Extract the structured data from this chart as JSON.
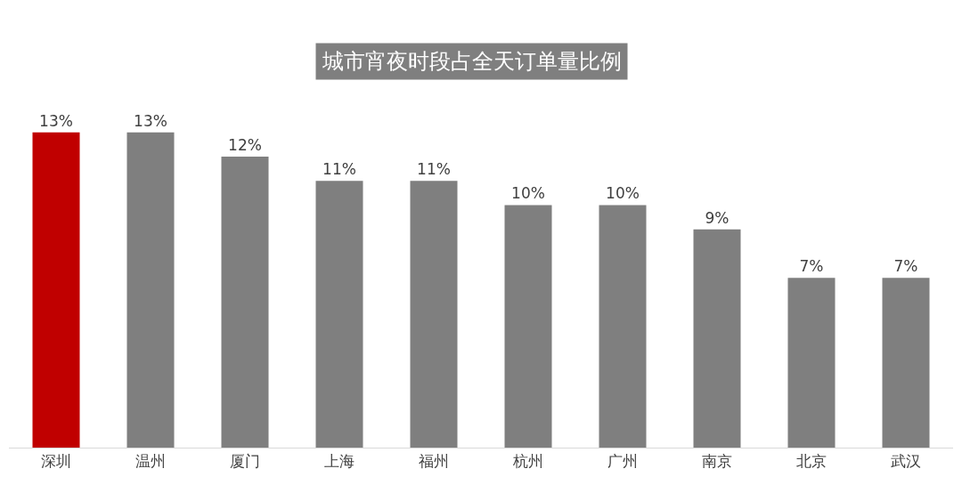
{
  "chart_data": {
    "type": "bar",
    "title": "城市宵夜时段占全天订单量比例",
    "categories": [
      "深圳",
      "温州",
      "厦门",
      "上海",
      "福州",
      "杭州",
      "广州",
      "南京",
      "北京",
      "武汉"
    ],
    "values": [
      13,
      13,
      12,
      11,
      11,
      10,
      10,
      9,
      7,
      7
    ],
    "colors": [
      "#c00000",
      "#7f7f7f",
      "#7f7f7f",
      "#7f7f7f",
      "#7f7f7f",
      "#7f7f7f",
      "#7f7f7f",
      "#7f7f7f",
      "#7f7f7f",
      "#7f7f7f"
    ],
    "value_labels": [
      "13%",
      "13%",
      "12%",
      "11%",
      "11%",
      "10%",
      "10%",
      "9%",
      "7%",
      "7%"
    ],
    "grid": false,
    "legend": false
  }
}
